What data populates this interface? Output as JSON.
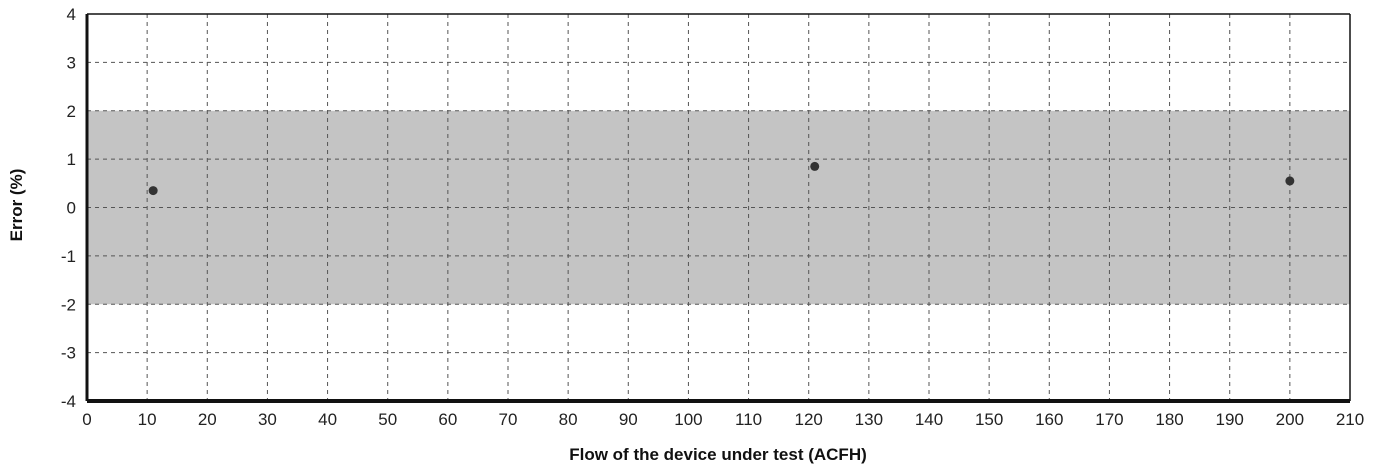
{
  "chart_data": {
    "type": "scatter",
    "title": "",
    "xlabel": "Flow of the device under test (ACFH)",
    "ylabel": "Error (%)",
    "xlim": [
      0,
      210
    ],
    "ylim": [
      -4,
      4
    ],
    "x_ticks": [
      "0",
      "10",
      "20",
      "30",
      "40",
      "50",
      "60",
      "70",
      "80",
      "90",
      "100",
      "110",
      "120",
      "130",
      "140",
      "150",
      "160",
      "170",
      "180",
      "190",
      "200",
      "210"
    ],
    "y_ticks": [
      "4",
      "3",
      "2",
      "1",
      "0",
      "-1",
      "-2",
      "-3",
      "-4"
    ],
    "grid": true,
    "tolerance_band": {
      "lower": -2,
      "upper": 2,
      "color": "#c4c4c4"
    },
    "series": [
      {
        "points": [
          {
            "x": 11,
            "y": 0.35
          },
          {
            "x": 121,
            "y": 0.85
          },
          {
            "x": 200,
            "y": 0.55
          }
        ]
      }
    ],
    "colors": {
      "grid": "#555555",
      "axis": "#111111",
      "marker": "#333333"
    }
  }
}
